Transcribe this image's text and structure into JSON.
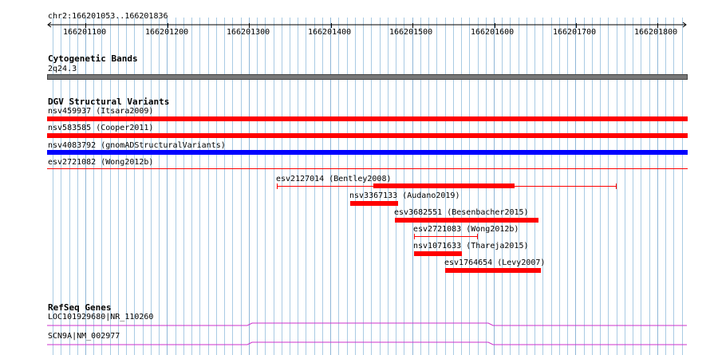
{
  "ruler": {
    "range": "chr2:166201053..166201836",
    "ticks": [
      "166201100",
      "166201200",
      "166201300",
      "166201400",
      "166201500",
      "166201600",
      "166201700",
      "166201800"
    ]
  },
  "tracks": {
    "cytoband": {
      "title": "Cytogenetic Bands",
      "band": "2q24.3",
      "color": "#777777"
    },
    "dgv": {
      "title": "DGV Structural Variants",
      "full_rows": [
        {
          "label": "nsv459937 (Itsara2009)",
          "color": "#ff0000"
        },
        {
          "label": "nsv583585 (Cooper2011)",
          "color": "#ff0000"
        },
        {
          "label": "nsv4083792 (gnomADStructuralVariants)",
          "color": "#0000ff"
        },
        {
          "label": "esv2721082 (Wong2012b)",
          "color": "#ff0000"
        }
      ],
      "features": [
        {
          "label": "esv2127014 (Bentley2008)",
          "color": "#ff0000"
        },
        {
          "label": "nsv3367133 (Audano2019)",
          "color": "#ff0000"
        },
        {
          "label": "esv3682551 (Besenbacher2015)",
          "color": "#ff0000"
        },
        {
          "label": "esv2721083 (Wong2012b)",
          "color": "#ff0000"
        },
        {
          "label": "nsv1071633 (Thareja2015)",
          "color": "#ff0000"
        },
        {
          "label": "esv1764654 (Levy2007)",
          "color": "#ff0000"
        }
      ]
    },
    "refseq": {
      "title": "RefSeq Genes",
      "genes": [
        {
          "label": "LOC101929680|NR_110260",
          "color": "#cc33cc"
        },
        {
          "label": "SCN9A|NM_002977",
          "color": "#cc33cc"
        }
      ]
    }
  }
}
